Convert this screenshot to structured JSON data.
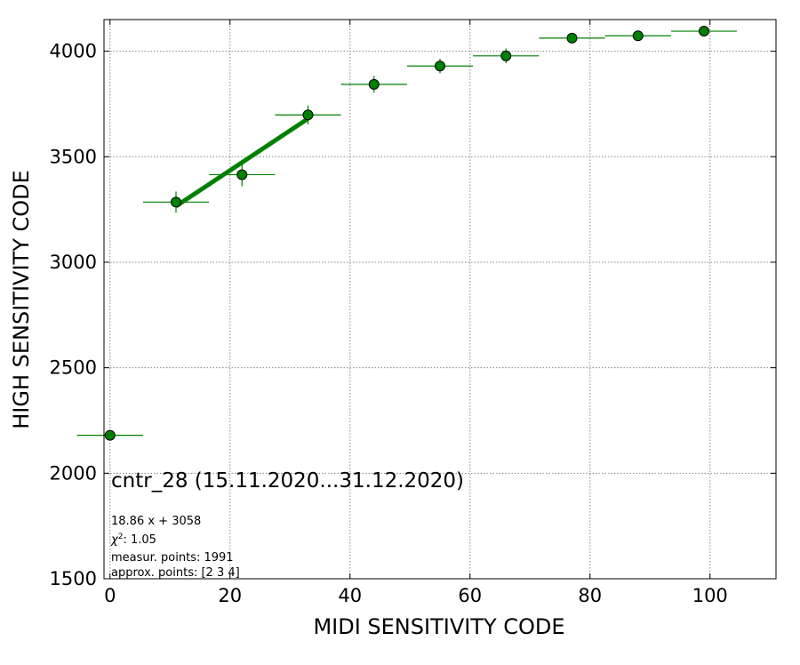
{
  "chart_data": {
    "type": "scatter",
    "xlabel": "MIDI SENSITIVITY CODE",
    "ylabel": "HIGH SENSITIVITY CODE",
    "xlim": [
      -1,
      111
    ],
    "ylim": [
      1500,
      4150
    ],
    "xticks": [
      0,
      20,
      40,
      60,
      80,
      100
    ],
    "yticks": [
      1500,
      2000,
      2500,
      3000,
      3500,
      4000
    ],
    "grid": true,
    "points": [
      {
        "x": 0,
        "y": 2180,
        "xerr": 5.5,
        "yerr": 0
      },
      {
        "x": 11,
        "y": 3285,
        "xerr": 5.5,
        "yerr": 50
      },
      {
        "x": 22,
        "y": 3415,
        "xerr": 5.5,
        "yerr": 55
      },
      {
        "x": 33,
        "y": 3698,
        "xerr": 5.5,
        "yerr": 45
      },
      {
        "x": 44,
        "y": 3843,
        "xerr": 5.5,
        "yerr": 40
      },
      {
        "x": 55,
        "y": 3930,
        "xerr": 5.5,
        "yerr": 35
      },
      {
        "x": 66,
        "y": 3978,
        "xerr": 5.5,
        "yerr": 35
      },
      {
        "x": 77,
        "y": 4062,
        "xerr": 5.5,
        "yerr": 20
      },
      {
        "x": 88,
        "y": 4073,
        "xerr": 5.5,
        "yerr": 20
      },
      {
        "x": 99,
        "y": 4095,
        "xerr": 5.5,
        "yerr": 15
      }
    ],
    "fit": {
      "slope": 18.86,
      "intercept": 3058,
      "x_from": 11,
      "x_to": 33
    },
    "colors": {
      "marker": "#008000",
      "errorbar": "#008000",
      "fit": "#008000",
      "marker_edge": "#000000",
      "grid": "#888888"
    },
    "annotations": {
      "title": "cntr_28 (15.11.2020...31.12.2020)",
      "equation": "18.86 x + 3058",
      "chi2_value": ": 1.05",
      "measur_points": "measur. points: 1991",
      "approx_points": "approx. points: [2 3 4]"
    }
  }
}
